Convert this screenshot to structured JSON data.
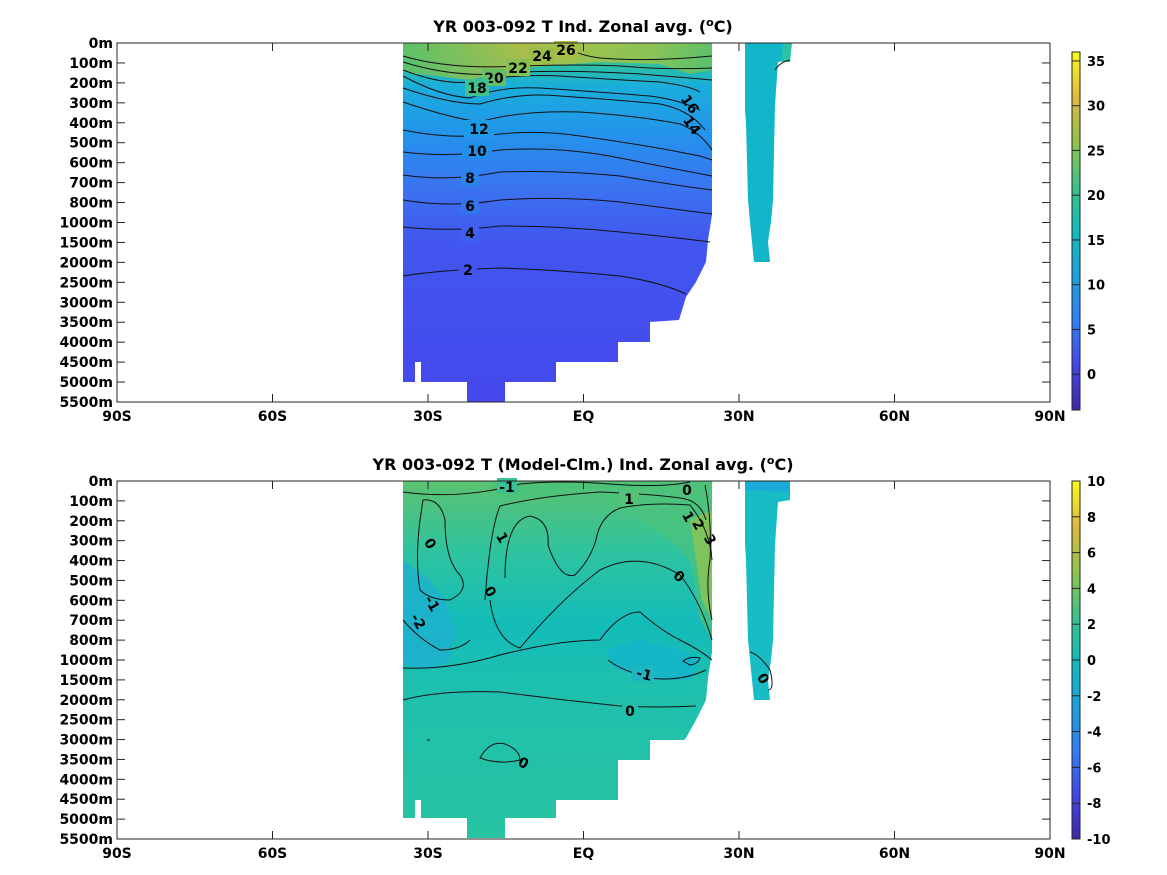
{
  "chart_data": [
    {
      "type": "heatmap",
      "title": "YR 003-092 T Ind. Zonal avg. (",
      "title_sup": "o",
      "title_end": "C)",
      "x_ticks": [
        "90S",
        "60S",
        "30S",
        "EQ",
        "30N",
        "60N",
        "90N"
      ],
      "x_values": [
        -90,
        -60,
        -30,
        0,
        30,
        60,
        90
      ],
      "xlim": [
        -90,
        90
      ],
      "y_ticks": [
        "0m",
        "100m",
        "200m",
        "300m",
        "400m",
        "500m",
        "600m",
        "700m",
        "800m",
        "1000m",
        "1500m",
        "2000m",
        "2500m",
        "3000m",
        "3500m",
        "4000m",
        "4500m",
        "5000m",
        "5500m"
      ],
      "colorbar": {
        "ticks": [
          35,
          30,
          25,
          20,
          15,
          10,
          5,
          0
        ],
        "range": [
          -4,
          36
        ]
      },
      "contour_levels": [
        "26",
        "24",
        "22",
        "20",
        "18",
        "16",
        "14",
        "12",
        "10",
        "8",
        "6",
        "4",
        "2"
      ],
      "colormap": "parula"
    },
    {
      "type": "heatmap",
      "title": "YR 003-092 T (Model-Clm.) Ind. Zonal avg. (",
      "title_sup": "o",
      "title_end": "C)",
      "x_ticks": [
        "90S",
        "60S",
        "30S",
        "EQ",
        "30N",
        "60N",
        "90N"
      ],
      "x_values": [
        -90,
        -60,
        -30,
        0,
        30,
        60,
        90
      ],
      "xlim": [
        -90,
        90
      ],
      "y_ticks": [
        "0m",
        "100m",
        "200m",
        "300m",
        "400m",
        "500m",
        "600m",
        "700m",
        "800m",
        "1000m",
        "1500m",
        "2000m",
        "2500m",
        "3000m",
        "3500m",
        "4000m",
        "4500m",
        "5000m",
        "5500m"
      ],
      "colorbar": {
        "ticks": [
          10,
          8,
          6,
          4,
          2,
          0,
          -2,
          -4,
          -6,
          -8,
          -10
        ],
        "range": [
          -10,
          10
        ]
      },
      "contour_levels": [
        "-1",
        "1",
        "0",
        "1",
        "2",
        "3",
        "0",
        "0",
        "1",
        "-1",
        "-2",
        "0",
        "-1",
        "0",
        "0",
        "0"
      ],
      "colormap": "parula"
    }
  ]
}
